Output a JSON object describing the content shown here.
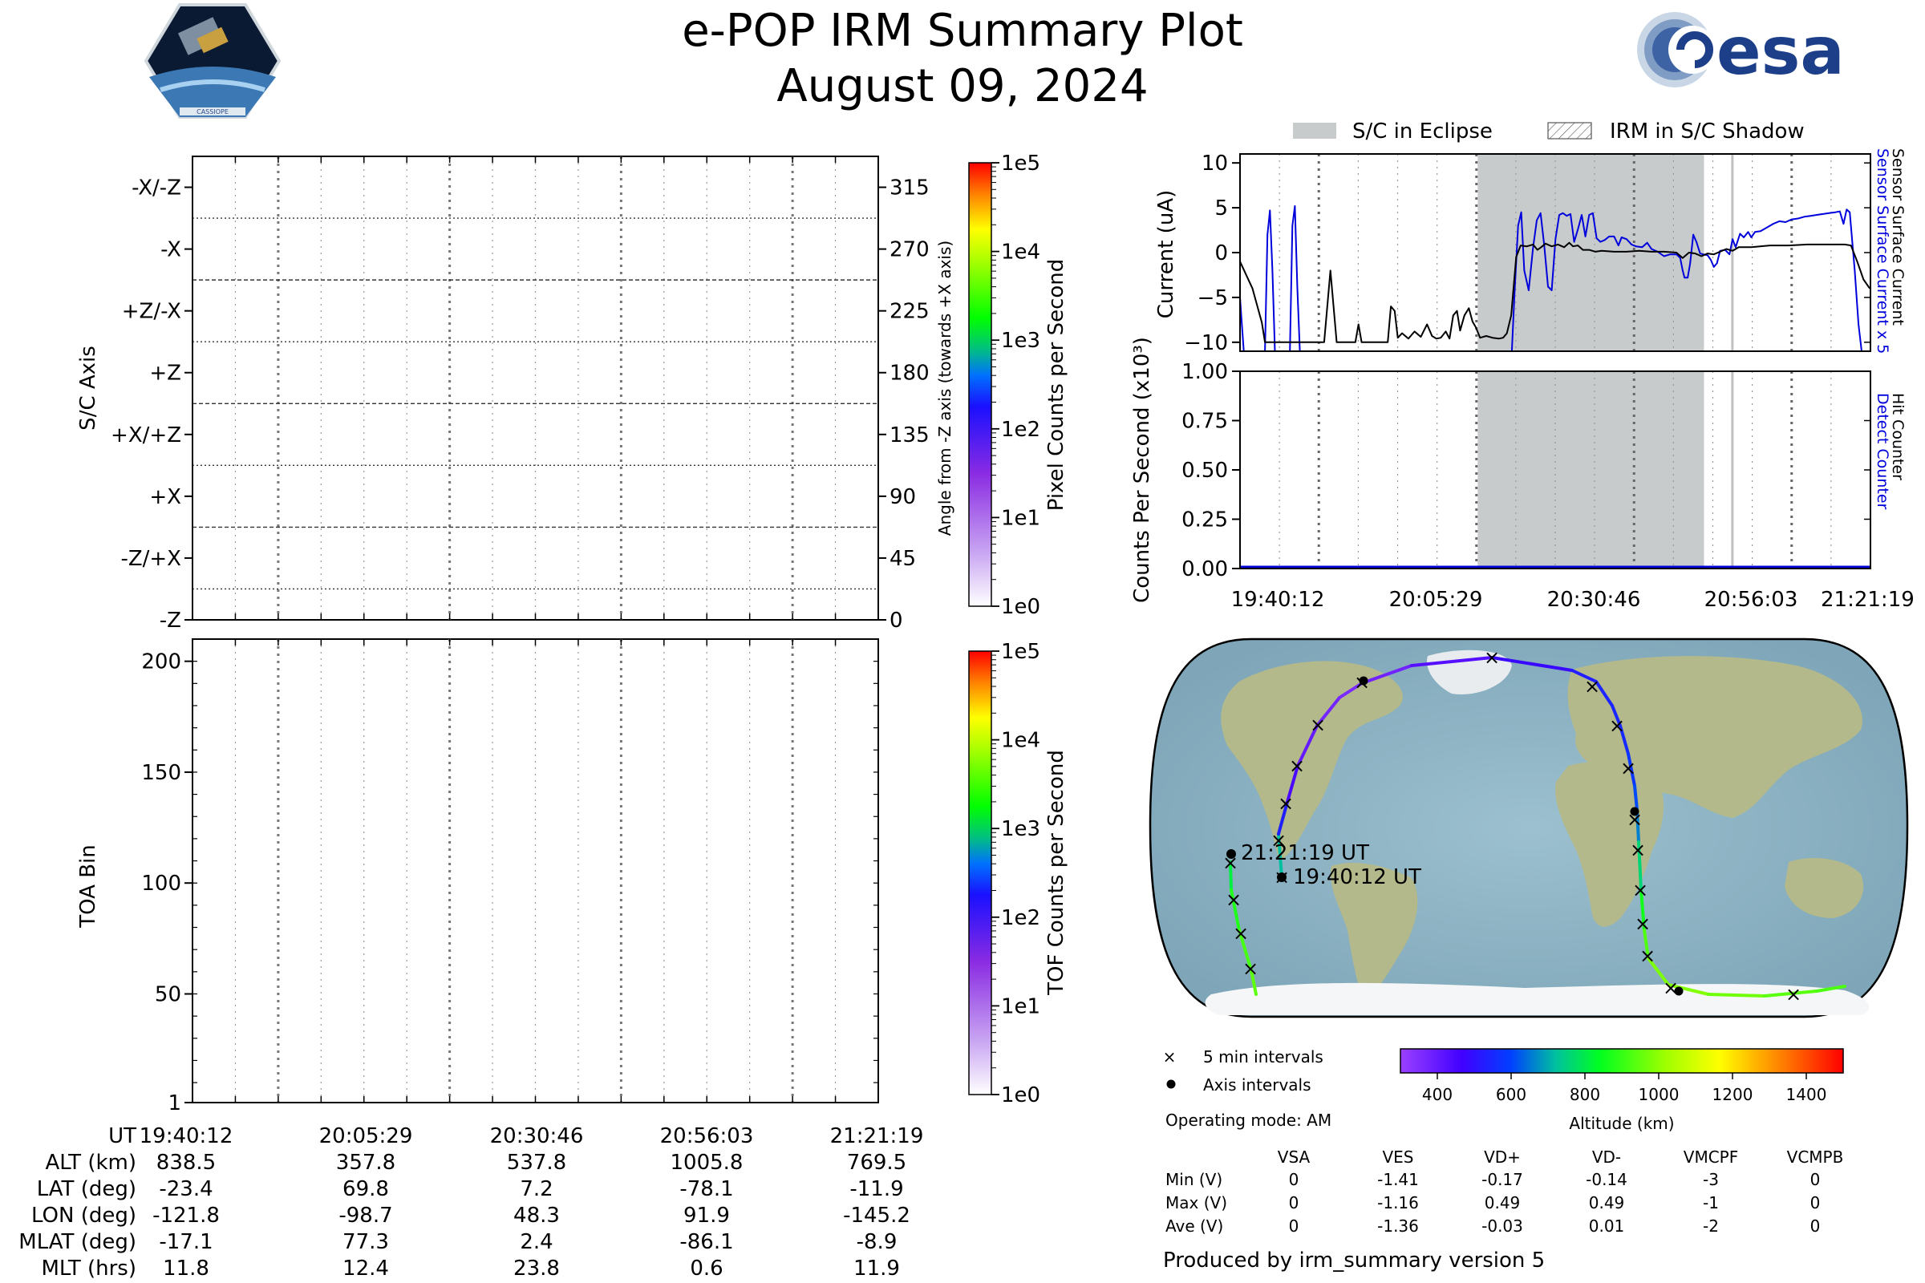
{
  "title": "e-POP IRM Summary Plot",
  "date": "August 09, 2024",
  "logo_left_text": "CASSIOPE",
  "logo_right_text": "esa",
  "colors": {
    "sensor_blue": "#0000dd",
    "eclipse_gray": "#c8cbcb",
    "orbit_purple": "#8a2be2",
    "orbit_green": "#33ee33"
  },
  "chart_data": [
    {
      "id": "sc_axis",
      "type": "heatmap",
      "ylabel": "S/C Axis",
      "ylabel_right": "Angle from -Z axis (towards +X axis)",
      "yticks_left": [
        "-X/-Z",
        "-X",
        "+Z/-X",
        "+Z",
        "+X/+Z",
        "+X",
        "-Z/+X",
        "-Z"
      ],
      "yticks_right": [
        315,
        270,
        225,
        180,
        135,
        90,
        45,
        0
      ],
      "ylim": [
        0,
        337.5
      ],
      "colorbar": {
        "label": "Pixel Counts per Second",
        "ticks": [
          "1e0",
          "1e1",
          "1e2",
          "1e3",
          "1e4",
          "1e5"
        ]
      }
    },
    {
      "id": "toa",
      "type": "heatmap",
      "ylabel": "TOA Bin",
      "yticks": [
        1,
        50,
        100,
        150,
        200
      ],
      "ylim": [
        1,
        210
      ],
      "colorbar": {
        "label": "TOF Counts per Second",
        "ticks": [
          "1e0",
          "1e1",
          "1e2",
          "1e3",
          "1e4",
          "1e5"
        ]
      }
    },
    {
      "id": "current",
      "type": "line",
      "ylabel": "Current (uA)",
      "ylim": [
        -11,
        11
      ],
      "yticks": [
        10,
        5,
        0,
        -5,
        -10
      ],
      "legend": [
        "S/C in Eclipse",
        "IRM in S/C Shadow"
      ],
      "right_labels": [
        "Sensor Surface Current x 5",
        "Sensor Surface Current"
      ],
      "eclipse": [
        0.377,
        0.736
      ],
      "shadow_line": 0.781,
      "x_span_minutes": 101.12,
      "series": [
        {
          "name": "Sensor Surface Current",
          "color": "#000000",
          "points": [
            [
              0,
              -1
            ],
            [
              2,
              -4
            ],
            [
              3.5,
              -7.8
            ],
            [
              4,
              -10
            ],
            [
              9,
              -10
            ],
            [
              12,
              -10
            ],
            [
              13.5,
              -10
            ],
            [
              14.5,
              -2
            ],
            [
              15.5,
              -10
            ],
            [
              16,
              -10
            ],
            [
              18,
              -10
            ],
            [
              18.5,
              -10
            ],
            [
              19,
              -8
            ],
            [
              19.5,
              -10
            ],
            [
              20,
              -10
            ],
            [
              22,
              -10
            ],
            [
              23.7,
              -10
            ],
            [
              24.2,
              -6
            ],
            [
              24.8,
              -6.5
            ],
            [
              25.3,
              -9.5
            ],
            [
              26,
              -9
            ],
            [
              27,
              -9.6
            ],
            [
              28,
              -8.8
            ],
            [
              29,
              -9.4
            ],
            [
              30,
              -8
            ],
            [
              30.8,
              -9.3
            ],
            [
              31.5,
              -9.6
            ],
            [
              32.2,
              -9.5
            ],
            [
              33,
              -8.8
            ],
            [
              33.6,
              -9.6
            ],
            [
              34.2,
              -7
            ],
            [
              34.8,
              -6.5
            ],
            [
              35.3,
              -8.7
            ],
            [
              36,
              -7
            ],
            [
              36.7,
              -6.2
            ],
            [
              37.3,
              -7.7
            ],
            [
              37.8,
              -8.3
            ],
            [
              38.5,
              -9.5
            ],
            [
              39.5,
              -9.3
            ],
            [
              40.5,
              -9.5
            ],
            [
              41.5,
              -9.6
            ],
            [
              42.2,
              -9.5
            ],
            [
              42.8,
              -9
            ],
            [
              43.5,
              -7
            ],
            [
              44.3,
              -0.5
            ],
            [
              45,
              0.8
            ],
            [
              46,
              0.7
            ],
            [
              47,
              0.9
            ],
            [
              47.7,
              0.3
            ],
            [
              48.3,
              0.6
            ],
            [
              49,
              1
            ],
            [
              50,
              0.7
            ],
            [
              51,
              0.9
            ],
            [
              52,
              0.6
            ],
            [
              52.8,
              1.1
            ],
            [
              53.4,
              0.7
            ],
            [
              54.2,
              0.8
            ],
            [
              55,
              0.3
            ],
            [
              56,
              0.3
            ],
            [
              57,
              0.1
            ],
            [
              58,
              0.2
            ],
            [
              60,
              0.1
            ],
            [
              62,
              0.1
            ],
            [
              64,
              0.2
            ],
            [
              66,
              0.1
            ],
            [
              68,
              0.1
            ],
            [
              70,
              0
            ],
            [
              71,
              -0.6
            ],
            [
              72,
              0
            ],
            [
              73,
              -0.1
            ],
            [
              74,
              -0.4
            ],
            [
              75,
              -0.1
            ],
            [
              76,
              -0.2
            ],
            [
              78,
              0.4
            ],
            [
              79,
              0.2
            ],
            [
              80,
              0.6
            ],
            [
              82,
              0.6
            ],
            [
              85,
              0.8
            ],
            [
              88,
              0.8
            ],
            [
              91,
              0.9
            ],
            [
              94,
              0.9
            ],
            [
              97,
              0.9
            ],
            [
              98,
              0.8
            ],
            [
              99,
              -1
            ],
            [
              100,
              -3
            ],
            [
              101,
              -4
            ]
          ]
        },
        {
          "name": "Sensor Surface Current x 5",
          "color": "#0000dd",
          "points": [
            [
              0,
              -5
            ],
            [
              0.3,
              -8
            ],
            [
              0.6,
              -11
            ],
            [
              4,
              -11
            ],
            [
              4.4,
              2
            ],
            [
              4.8,
              4.7
            ],
            [
              5.2,
              -2
            ],
            [
              5.6,
              -11
            ],
            [
              8,
              -11
            ],
            [
              8.4,
              3
            ],
            [
              8.8,
              5.2
            ],
            [
              9.2,
              -4
            ],
            [
              9.6,
              -11
            ],
            [
              12,
              -11
            ],
            [
              40,
              -11
            ],
            [
              43.6,
              -11
            ],
            [
              44,
              -5
            ],
            [
              44.6,
              3
            ],
            [
              45.1,
              4.5
            ],
            [
              45.6,
              -2
            ],
            [
              46.3,
              -4.2
            ],
            [
              47,
              0.5
            ],
            [
              47.6,
              3.6
            ],
            [
              48.2,
              4.4
            ],
            [
              48.8,
              0.8
            ],
            [
              49.4,
              -3.8
            ],
            [
              50,
              -4.2
            ],
            [
              50.6,
              1.5
            ],
            [
              51.2,
              4.2
            ],
            [
              51.8,
              4.4
            ],
            [
              52.4,
              4.1
            ],
            [
              53,
              4.3
            ],
            [
              53.6,
              1.2
            ],
            [
              54.2,
              2.6
            ],
            [
              54.8,
              4.2
            ],
            [
              55.4,
              1.8
            ],
            [
              56,
              4.2
            ],
            [
              56.6,
              4.4
            ],
            [
              57.2,
              1.6
            ],
            [
              57.8,
              1.2
            ],
            [
              58.5,
              1.4
            ],
            [
              59.2,
              1.8
            ],
            [
              60,
              1.8
            ],
            [
              60.7,
              0.8
            ],
            [
              61.2,
              1.7
            ],
            [
              62,
              1.5
            ],
            [
              62.8,
              0.9
            ],
            [
              63.5,
              0.7
            ],
            [
              64.5,
              0.6
            ],
            [
              65.3,
              1.1
            ],
            [
              66,
              0.4
            ],
            [
              67,
              0.1
            ],
            [
              68,
              -0.4
            ],
            [
              69,
              -0.2
            ],
            [
              70,
              -0.2
            ],
            [
              70.6,
              -0.6
            ],
            [
              71,
              -2
            ],
            [
              71.3,
              -2.8
            ],
            [
              71.8,
              -2.8
            ],
            [
              72.2,
              -1.2
            ],
            [
              72.7,
              2
            ],
            [
              73.2,
              1.2
            ],
            [
              73.8,
              -0.1
            ],
            [
              74.3,
              -0.2
            ],
            [
              75,
              -0.3
            ],
            [
              75.5,
              -0.8
            ],
            [
              76,
              -1.6
            ],
            [
              76.5,
              -1.2
            ],
            [
              77,
              0.2
            ],
            [
              77.8,
              0.3
            ],
            [
              78.5,
              -0.2
            ],
            [
              79,
              1.5
            ],
            [
              79.5,
              0.6
            ],
            [
              80.2,
              2.1
            ],
            [
              80.8,
              1.7
            ],
            [
              81.5,
              2.3
            ],
            [
              82,
              1.7
            ],
            [
              82.6,
              2.3
            ],
            [
              83.5,
              2.4
            ],
            [
              84.5,
              2.8
            ],
            [
              85.5,
              3.2
            ],
            [
              86.5,
              3.5
            ],
            [
              87.5,
              3.4
            ],
            [
              88.5,
              3.7
            ],
            [
              89.5,
              3.8
            ],
            [
              90.5,
              4
            ],
            [
              91.5,
              4.1
            ],
            [
              92.5,
              4.2
            ],
            [
              93.5,
              4.3
            ],
            [
              94.5,
              4.4
            ],
            [
              95.5,
              4.5
            ],
            [
              96.2,
              4.6
            ],
            [
              96.8,
              3.2
            ],
            [
              97.3,
              4.8
            ],
            [
              97.8,
              4.5
            ],
            [
              98.6,
              -2
            ],
            [
              99.2,
              -8
            ],
            [
              99.7,
              -11
            ]
          ]
        }
      ]
    },
    {
      "id": "counts",
      "type": "line",
      "ylabel": "Counts Per Second (x10³)",
      "ylim": [
        0,
        1
      ],
      "yticks": [
        "1.00",
        "0.75",
        "0.50",
        "0.25",
        "0.00"
      ],
      "right_labels": [
        "Detect Counter",
        "Hit Counter"
      ],
      "series": [
        {
          "name": "Detect Counter",
          "values": [
            0,
            0
          ]
        },
        {
          "name": "Hit Counter",
          "values": [
            0,
            0
          ]
        }
      ]
    }
  ],
  "x_axis_times": [
    "19:40:12",
    "20:05:29",
    "20:30:46",
    "20:56:03",
    "21:21:19"
  ],
  "ephemeris": {
    "rows": [
      {
        "label": "UT",
        "values": [
          "19:40:12",
          "20:05:29",
          "20:30:46",
          "20:56:03",
          "21:21:19"
        ]
      },
      {
        "label": "ALT (km)",
        "values": [
          "838.5",
          "357.8",
          "537.8",
          "1005.8",
          "769.5"
        ]
      },
      {
        "label": "LAT (deg)",
        "values": [
          "-23.4",
          "69.8",
          "7.2",
          "-78.1",
          "-11.9"
        ]
      },
      {
        "label": "LON (deg)",
        "values": [
          "-121.8",
          "-98.7",
          "48.3",
          "91.9",
          "-145.2"
        ]
      },
      {
        "label": "MLAT (deg)",
        "values": [
          "-17.1",
          "77.3",
          "2.4",
          "-86.1",
          "-8.9"
        ]
      },
      {
        "label": "MLT (hrs)",
        "values": [
          "11.8",
          "12.4",
          "23.8",
          "0.6",
          "11.9"
        ]
      }
    ]
  },
  "map": {
    "start_label": "19:40:12 UT",
    "end_label": "21:21:19 UT",
    "legend_cross": "5 min intervals",
    "legend_dot": "Axis intervals",
    "operating_mode": "Operating mode: AM",
    "altitude_label": "Altitude (km)",
    "altitude_ticks": [
      400,
      600,
      800,
      1000,
      1200,
      1400
    ],
    "altitude_range": [
      300,
      1500
    ]
  },
  "voltage_table": {
    "columns": [
      "VSA",
      "VES",
      "VD+",
      "VD-",
      "VMCPF",
      "VCMPB"
    ],
    "rows": [
      {
        "label": "Min (V)",
        "values": [
          "0",
          "-1.41",
          "-0.17",
          "-0.14",
          "-3",
          "0"
        ]
      },
      {
        "label": "Max (V)",
        "values": [
          "0",
          "-1.16",
          "0.49",
          "0.49",
          "-1",
          "0"
        ]
      },
      {
        "label": "Ave (V)",
        "values": [
          "0",
          "-1.36",
          "-0.03",
          "0.01",
          "-2",
          "0"
        ]
      }
    ]
  },
  "footer": "Produced by irm_summary version 5"
}
